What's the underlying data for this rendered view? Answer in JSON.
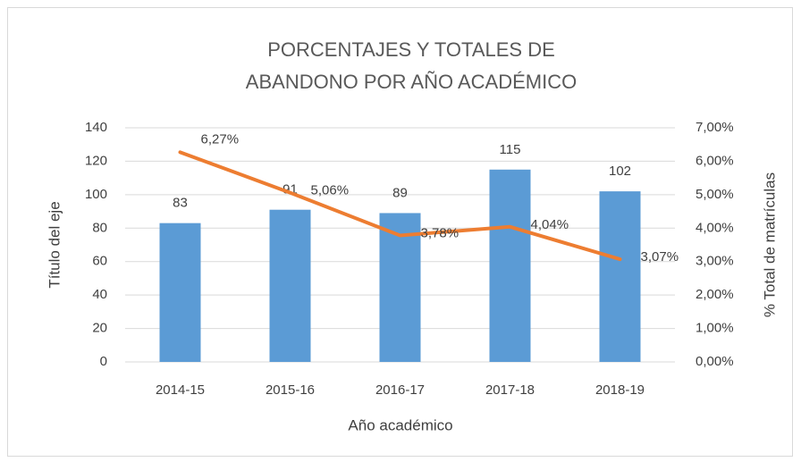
{
  "chart_data": {
    "type": "bar",
    "title": "PORCENTAJES Y TOTALES DE ABANDONO POR AÑO ACADÉMICO",
    "xlabel": "Año académico",
    "ylabel": "Título del eje",
    "y2label": "% Total de matrículas",
    "categories": [
      "2014-15",
      "2015-16",
      "2016-17",
      "2017-18",
      "2018-19"
    ],
    "series": [
      {
        "type": "bar",
        "color": "#5b9bd5",
        "values": [
          83,
          91,
          89,
          115,
          102
        ]
      },
      {
        "type": "line",
        "color": "#ed7d31",
        "axis": "y2",
        "values": [
          6.27,
          5.06,
          3.78,
          4.04,
          3.07
        ],
        "value_labels": [
          "6,27%",
          "5,06%",
          "3,78%",
          "4,04%",
          "3,07%"
        ]
      }
    ],
    "ylim": [
      0,
      140
    ],
    "yticks": [
      0,
      20,
      40,
      60,
      80,
      100,
      120,
      140
    ],
    "y2lim": [
      0,
      7
    ],
    "y2ticks": [
      {
        "value": 0,
        "label": "0,00%"
      },
      {
        "value": 1,
        "label": "1,00%"
      },
      {
        "value": 2,
        "label": "2,00%"
      },
      {
        "value": 3,
        "label": "3,00%"
      },
      {
        "value": 4,
        "label": "4,00%"
      },
      {
        "value": 5,
        "label": "5,00%"
      },
      {
        "value": 6,
        "label": "6,00%"
      },
      {
        "value": 7,
        "label": "7,00%"
      }
    ],
    "grid": true
  }
}
